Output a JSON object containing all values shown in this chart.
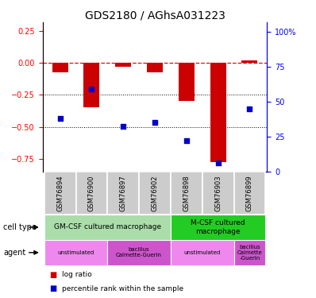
{
  "title": "GDS2180 / AGhsA031223",
  "samples": [
    "GSM76894",
    "GSM76900",
    "GSM76897",
    "GSM76902",
    "GSM76898",
    "GSM76903",
    "GSM76899"
  ],
  "log_ratio": [
    -0.07,
    -0.35,
    -0.03,
    -0.07,
    -0.3,
    -0.78,
    0.02
  ],
  "percentile_rank": [
    38,
    59,
    32,
    35,
    22,
    6,
    45
  ],
  "ylim_left": [
    -0.85,
    0.32
  ],
  "ylim_right": [
    0,
    106.67
  ],
  "yticks_left": [
    0.25,
    0.0,
    -0.25,
    -0.5,
    -0.75
  ],
  "yticks_right": [
    100,
    75,
    50,
    25,
    0
  ],
  "hline_y": 0.0,
  "dotted_lines": [
    -0.25,
    -0.5
  ],
  "bar_color": "#cc0000",
  "dot_color": "#0000cc",
  "bar_width": 0.5,
  "cell_type_groups": [
    {
      "label": "GM-CSF cultured macrophage",
      "start": 0,
      "end": 3,
      "color": "#aaddaa"
    },
    {
      "label": "M-CSF cultured\nmacrophage",
      "start": 4,
      "end": 6,
      "color": "#22cc22"
    }
  ],
  "agent_groups": [
    {
      "label": "unstimulated",
      "start": 0,
      "end": 1,
      "color": "#ee88ee"
    },
    {
      "label": "bacillus\nCalmette-Guerin",
      "start": 2,
      "end": 3,
      "color": "#cc55cc"
    },
    {
      "label": "unstimulated",
      "start": 4,
      "end": 5,
      "color": "#ee88ee"
    },
    {
      "label": "bacillus\nCalmette\n-Guerin",
      "start": 6,
      "end": 6,
      "color": "#cc55cc"
    }
  ],
  "legend_items": [
    {
      "label": "log ratio",
      "color": "#cc0000"
    },
    {
      "label": "percentile rank within the sample",
      "color": "#0000cc"
    }
  ],
  "title_fontsize": 10,
  "tick_fontsize": 7,
  "sample_fontsize": 6,
  "annot_fontsize": 6.5,
  "label_fontsize": 7
}
